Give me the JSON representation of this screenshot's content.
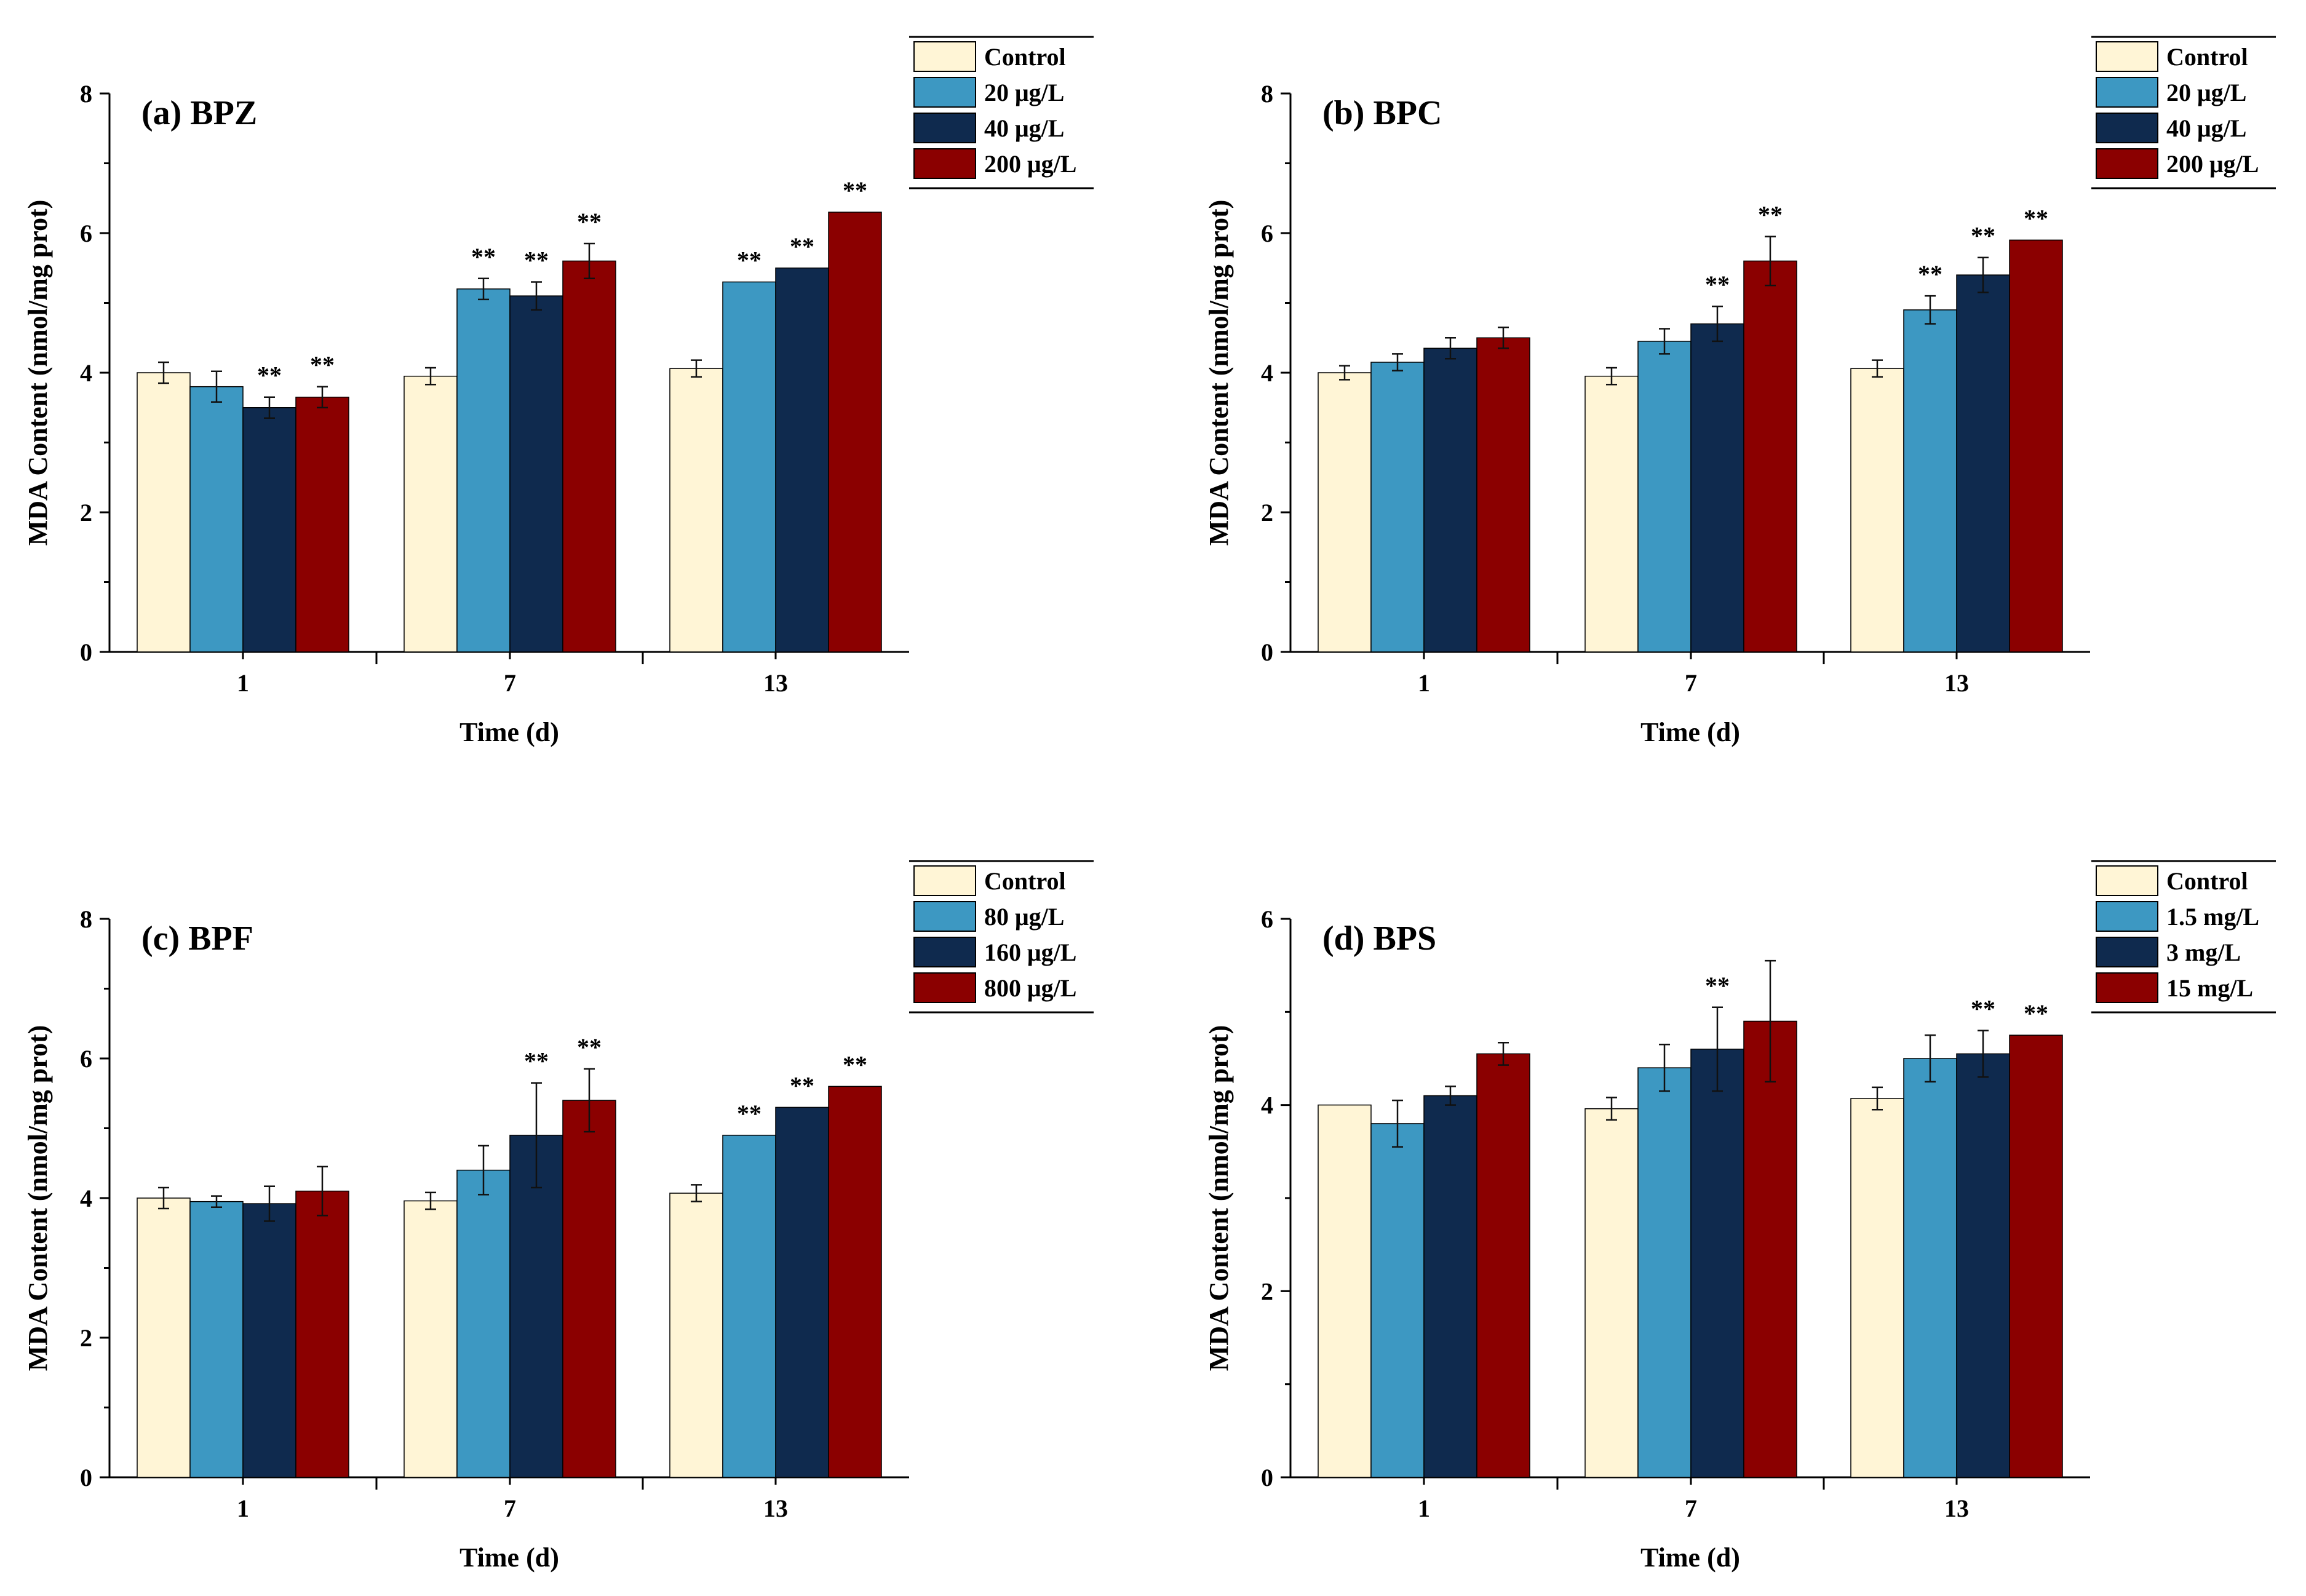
{
  "colors": {
    "control": "#FFF5D6",
    "level1": "#3D98C2",
    "level2": "#0F2A4E",
    "level3": "#8B0000",
    "axis": "#000000",
    "error": "#111111"
  },
  "chart_data": [
    {
      "type": "bar",
      "title": "(a) BPZ",
      "xlabel": "Time (d)",
      "ylabel": "MDA Content (nmol/mg prot)",
      "ylim": [
        0,
        8
      ],
      "yticks": [
        0,
        2,
        4,
        6,
        8
      ],
      "categories": [
        "1",
        "7",
        "13"
      ],
      "legend_position": "top-right",
      "series": [
        {
          "name": "Control",
          "color_key": "control",
          "values": [
            4.0,
            3.95,
            4.06
          ],
          "errors": [
            0.15,
            0.12,
            0.12
          ],
          "sig": [
            "",
            "",
            ""
          ]
        },
        {
          "name": "20 μg/L",
          "color_key": "level1",
          "values": [
            3.8,
            5.2,
            5.3
          ],
          "errors": [
            0.22,
            0.15,
            0.0
          ],
          "sig": [
            "",
            "**",
            "**"
          ]
        },
        {
          "name": "40 μg/L",
          "color_key": "level2",
          "values": [
            3.5,
            5.1,
            5.5
          ],
          "errors": [
            0.15,
            0.2,
            0.0
          ],
          "sig": [
            "**",
            "**",
            "**"
          ]
        },
        {
          "name": "200 μg/L",
          "color_key": "level3",
          "values": [
            3.65,
            5.6,
            6.3
          ],
          "errors": [
            0.15,
            0.25,
            0.0
          ],
          "sig": [
            "**",
            "**",
            "**"
          ]
        }
      ]
    },
    {
      "type": "bar",
      "title": "(b) BPC",
      "xlabel": "Time (d)",
      "ylabel": "MDA Content (nmol/mg prot)",
      "ylim": [
        0,
        8
      ],
      "yticks": [
        0,
        2,
        4,
        6,
        8
      ],
      "categories": [
        "1",
        "7",
        "13"
      ],
      "legend_position": "top-right",
      "series": [
        {
          "name": "Control",
          "color_key": "control",
          "values": [
            4.0,
            3.95,
            4.06
          ],
          "errors": [
            0.1,
            0.12,
            0.12
          ],
          "sig": [
            "",
            "",
            ""
          ]
        },
        {
          "name": "20 μg/L",
          "color_key": "level1",
          "values": [
            4.15,
            4.45,
            4.9
          ],
          "errors": [
            0.12,
            0.18,
            0.2
          ],
          "sig": [
            "",
            "",
            "**"
          ]
        },
        {
          "name": "40 μg/L",
          "color_key": "level2",
          "values": [
            4.35,
            4.7,
            5.4
          ],
          "errors": [
            0.15,
            0.25,
            0.25
          ],
          "sig": [
            "",
            "**",
            "**"
          ]
        },
        {
          "name": "200 μg/L",
          "color_key": "level3",
          "values": [
            4.5,
            5.6,
            5.9
          ],
          "errors": [
            0.15,
            0.35,
            0.0
          ],
          "sig": [
            "",
            "**",
            "**"
          ]
        }
      ]
    },
    {
      "type": "bar",
      "title": "(c) BPF",
      "xlabel": "Time (d)",
      "ylabel": "MDA Content (nmol/mg prot)",
      "ylim": [
        0,
        8
      ],
      "yticks": [
        0,
        2,
        4,
        6,
        8
      ],
      "categories": [
        "1",
        "7",
        "13"
      ],
      "legend_position": "top-right",
      "series": [
        {
          "name": "Control",
          "color_key": "control",
          "values": [
            4.0,
            3.96,
            4.07
          ],
          "errors": [
            0.15,
            0.12,
            0.12
          ],
          "sig": [
            "",
            "",
            ""
          ]
        },
        {
          "name": "80 μg/L",
          "color_key": "level1",
          "values": [
            3.95,
            4.4,
            4.9
          ],
          "errors": [
            0.08,
            0.35,
            0.0
          ],
          "sig": [
            "",
            "",
            "**"
          ]
        },
        {
          "name": "160 μg/L",
          "color_key": "level2",
          "values": [
            3.92,
            4.9,
            5.3
          ],
          "errors": [
            0.25,
            0.75,
            0.0
          ],
          "sig": [
            "",
            "**",
            "**"
          ]
        },
        {
          "name": "800 μg/L",
          "color_key": "level3",
          "values": [
            4.1,
            5.4,
            5.6
          ],
          "errors": [
            0.35,
            0.45,
            0.0
          ],
          "sig": [
            "",
            "**",
            "**"
          ]
        }
      ]
    },
    {
      "type": "bar",
      "title": "(d) BPS",
      "xlabel": "Time (d)",
      "ylabel": "MDA Content (nmol/mg prot)",
      "ylim": [
        0,
        6
      ],
      "yticks": [
        0,
        2,
        4,
        6
      ],
      "categories": [
        "1",
        "7",
        "13"
      ],
      "legend_position": "top-right",
      "series": [
        {
          "name": "Control",
          "color_key": "control",
          "values": [
            4.0,
            3.96,
            4.07
          ],
          "errors": [
            0.0,
            0.12,
            0.12
          ],
          "sig": [
            "",
            "",
            ""
          ]
        },
        {
          "name": "1.5 mg/L",
          "color_key": "level1",
          "values": [
            3.8,
            4.4,
            4.5
          ],
          "errors": [
            0.25,
            0.25,
            0.25
          ],
          "sig": [
            "",
            "",
            ""
          ]
        },
        {
          "name": "3 mg/L",
          "color_key": "level2",
          "values": [
            4.1,
            4.6,
            4.55
          ],
          "errors": [
            0.1,
            0.45,
            0.25
          ],
          "sig": [
            "",
            "**",
            "**"
          ]
        },
        {
          "name": "15 mg/L",
          "color_key": "level3",
          "values": [
            4.55,
            4.9,
            4.75
          ],
          "errors": [
            0.12,
            0.65,
            0.0
          ],
          "sig": [
            "",
            "",
            "**"
          ]
        }
      ]
    }
  ]
}
